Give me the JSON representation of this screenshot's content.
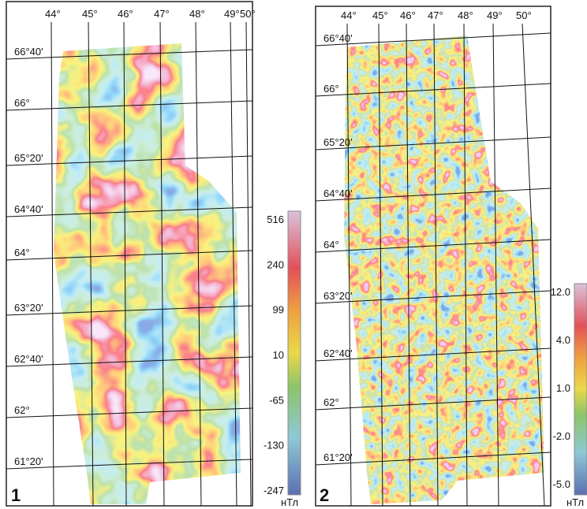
{
  "panels": [
    {
      "number": "1",
      "lon_labels": [
        "44°",
        "45°",
        "46°",
        "47°",
        "48°",
        "49°",
        "50°"
      ],
      "lat_labels": [
        "66°40'",
        "66°",
        "65°20'",
        "64°40'",
        "64°",
        "63°20'",
        "62°40'",
        "62°",
        "61°20'"
      ],
      "colorbar": {
        "labels": [
          "516",
          "240",
          "99",
          "10",
          "-65",
          "-130",
          "-247"
        ],
        "unit": "нТл"
      }
    },
    {
      "number": "2",
      "lon_labels": [
        "44°",
        "45°",
        "46°",
        "47°",
        "48°",
        "49°",
        "50°"
      ],
      "lat_labels": [
        "66°40'",
        "66°",
        "65°20'",
        "64°40'",
        "64°",
        "63°20'",
        "62°40'",
        "62°",
        "61°20'"
      ],
      "colorbar": {
        "labels": [
          "12.0",
          "4.0",
          "1.0",
          "-2.0",
          "-5.0"
        ],
        "unit": "нТл"
      }
    }
  ]
}
